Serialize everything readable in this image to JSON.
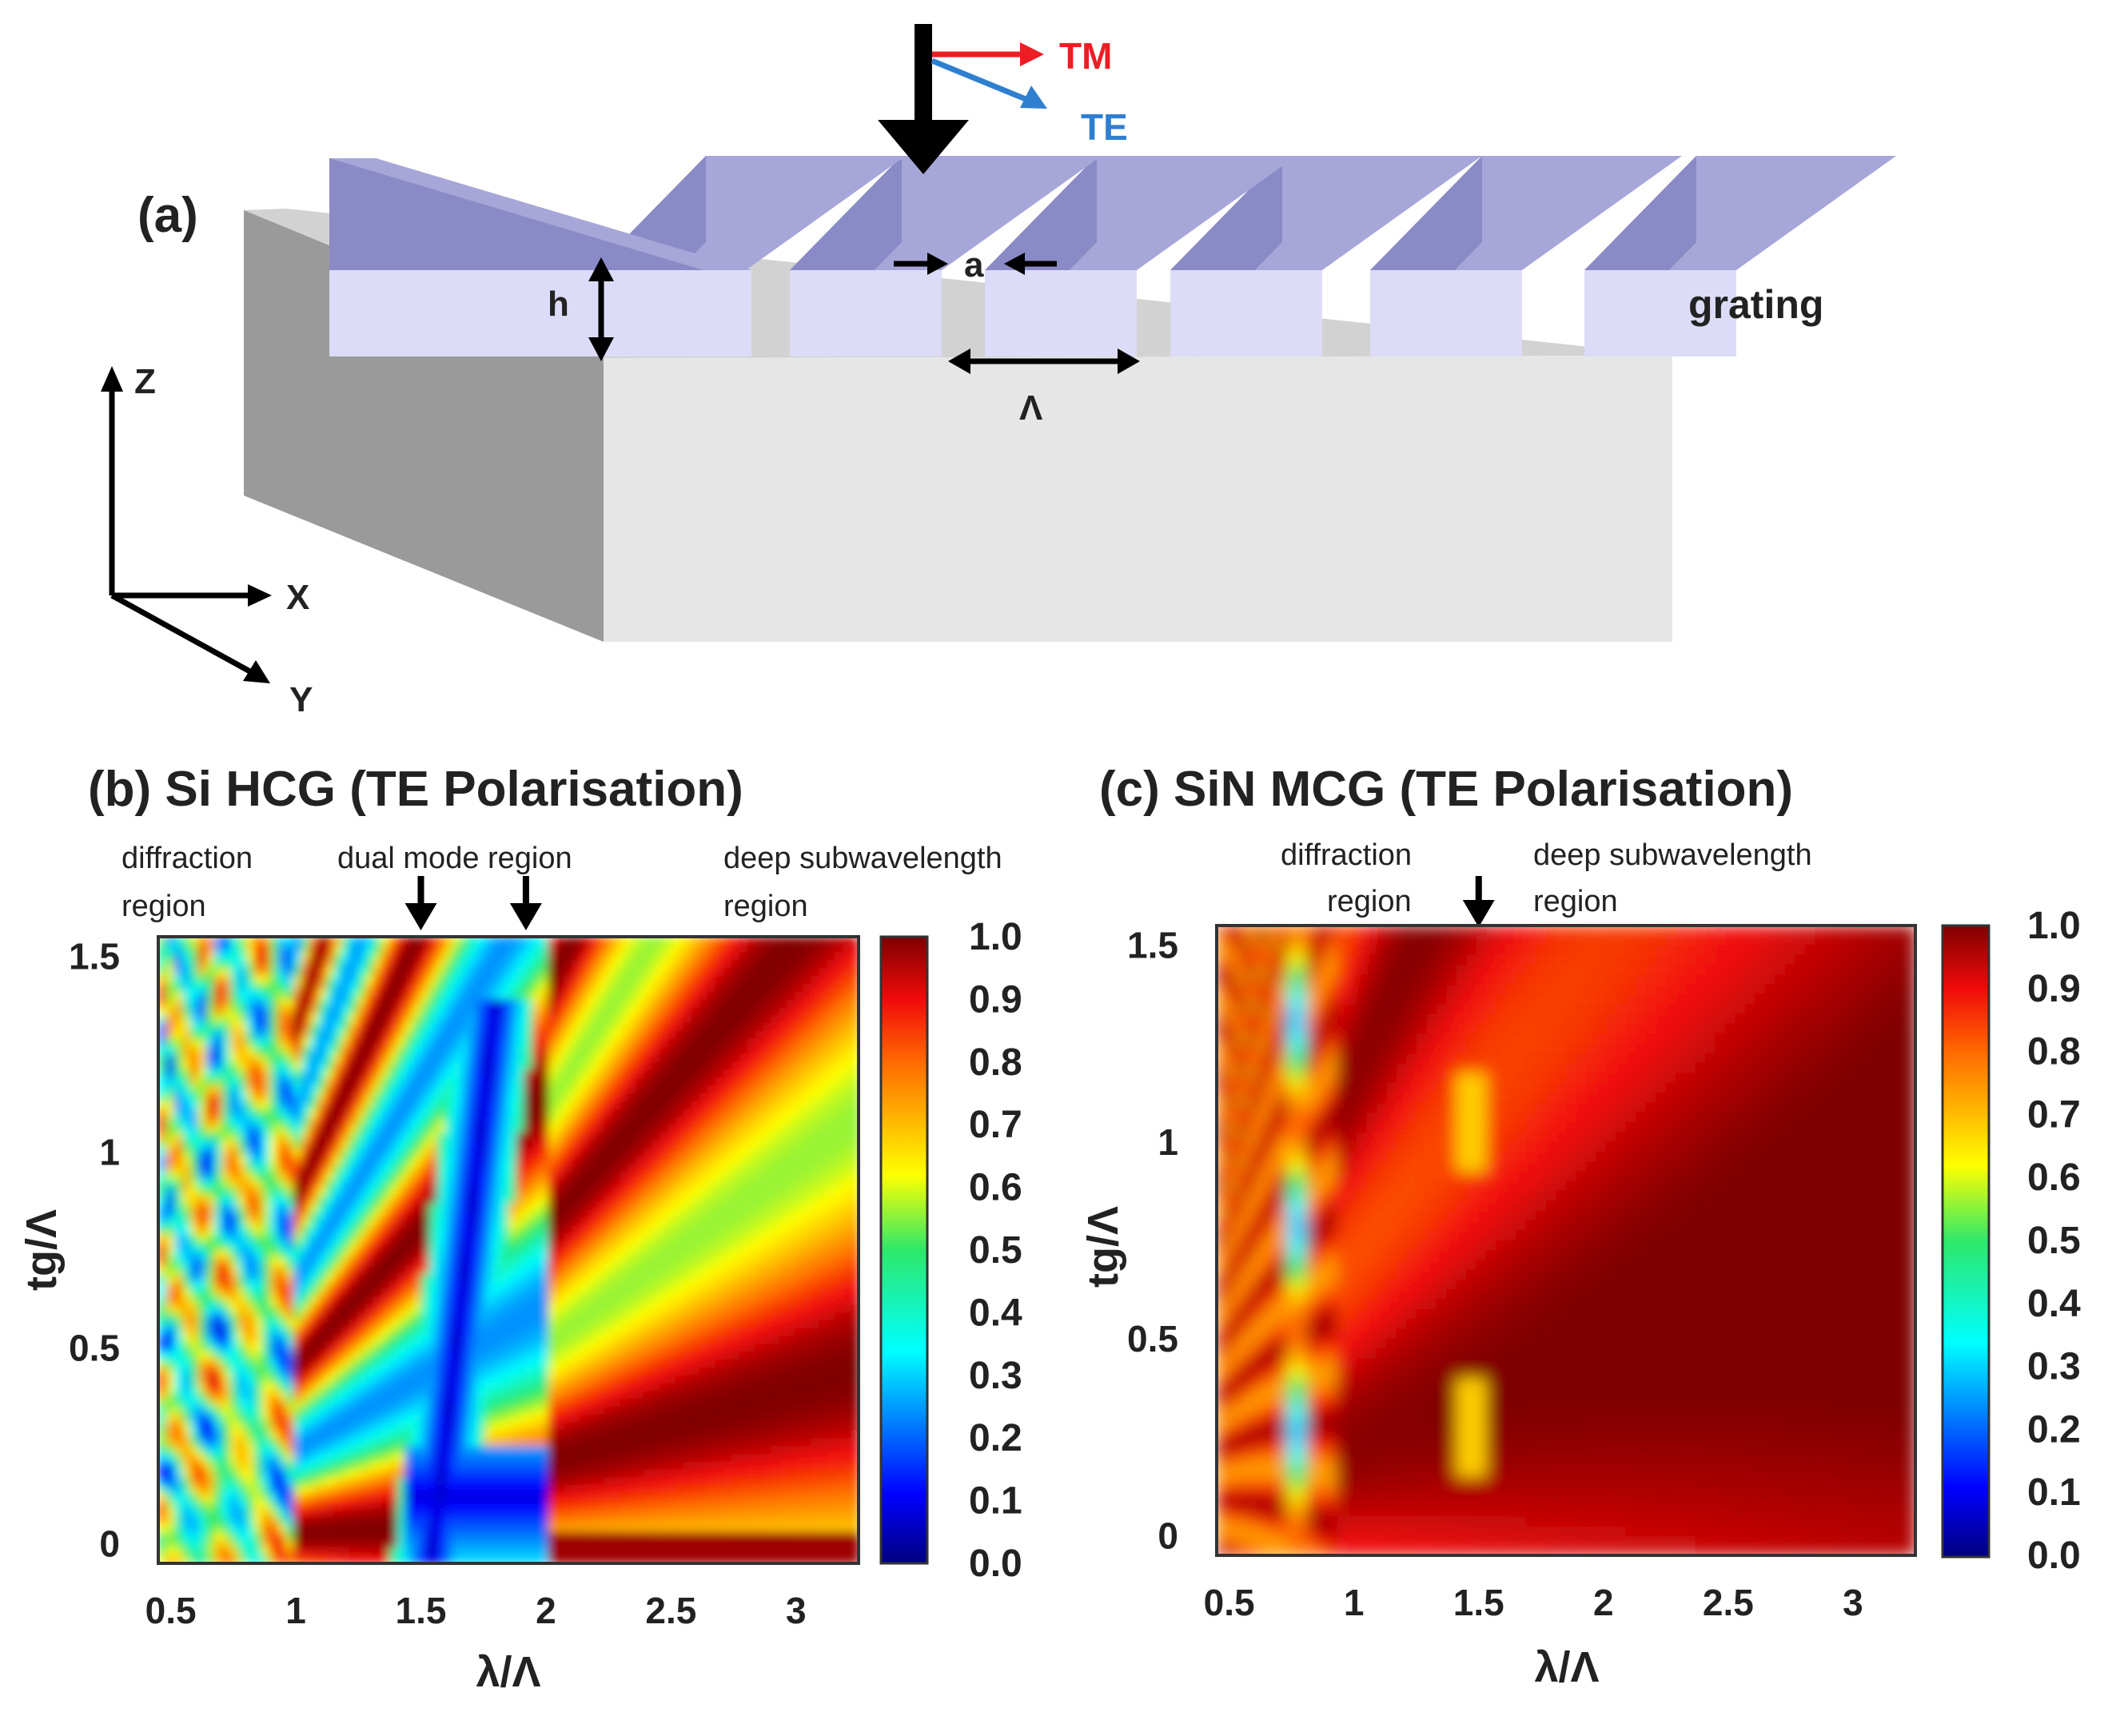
{
  "panel_a": {
    "label": "(a)",
    "grating_label": "grating",
    "dims": {
      "h": "h",
      "a": "a",
      "period": "Λ"
    },
    "polarisations": {
      "tm": "TM",
      "te": "TE",
      "tm_color": "#ee1c24",
      "te_color": "#2f7fd1"
    },
    "axes": {
      "z": "Z",
      "x": "X",
      "y": "Y"
    },
    "colors": {
      "grating_top": "#a6a6d8",
      "grating_front": "#dcdcf8",
      "grating_side": "#8a8ac6",
      "substrate_top": "#d4d4d4",
      "substrate_front": "#e6e6e6",
      "substrate_side": "#9a9a9a"
    }
  },
  "panel_b": {
    "title": "(b) Si HCG (TE Polarisation)",
    "annotations": {
      "diffraction_1": "diffraction",
      "diffraction_2": "region",
      "dual_mode": "dual mode region",
      "deep_1": "deep subwavelength",
      "deep_2": "region"
    },
    "dual_mode_arrows_at_x": [
      1.5,
      1.92
    ]
  },
  "panel_c": {
    "title": "(c) SiN MCG (TE Polarisation)",
    "annotations": {
      "diffraction_1": "diffraction",
      "diffraction_2": "region",
      "deep_1": "deep subwavelength",
      "deep_2": "region"
    },
    "boundary_arrow_at_x": 1.5
  },
  "chart_data": [
    {
      "type": "heatmap",
      "title": "(b) Si HCG (TE Polarisation)",
      "xlabel": "λ/Λ",
      "ylabel": "tg/Λ",
      "xlim": [
        0.45,
        3.25
      ],
      "ylim": [
        -0.05,
        1.55
      ],
      "xticks": [
        0.5,
        1,
        1.5,
        2,
        2.5,
        3
      ],
      "xtick_labels": [
        "0.5",
        "1",
        "1.5",
        "2",
        "2.5",
        "3"
      ],
      "yticks": [
        0,
        0.5,
        1,
        1.5
      ],
      "ytick_labels": [
        "0",
        "0.5",
        "1",
        "1.5"
      ],
      "colorbar": {
        "min": 0.0,
        "max": 1.0,
        "ticks": [
          "0.0",
          "0.1",
          "0.2",
          "0.3",
          "0.4",
          "0.5",
          "0.6",
          "0.7",
          "0.8",
          "0.9",
          "1.0"
        ],
        "colormap": "jet"
      },
      "description_values": {
        "max_reflectivity": 1.0,
        "min_reflectivity": 0.0
      }
    },
    {
      "type": "heatmap",
      "title": "(c) SiN MCG (TE Polarisation)",
      "xlabel": "λ/Λ",
      "ylabel": "tg/Λ",
      "xlim": [
        0.45,
        3.25
      ],
      "ylim": [
        -0.05,
        1.55
      ],
      "xticks": [
        0.5,
        1,
        1.5,
        2,
        2.5,
        3
      ],
      "xtick_labels": [
        "0.5",
        "1",
        "1.5",
        "2",
        "2.5",
        "3"
      ],
      "yticks": [
        0,
        0.5,
        1,
        1.5
      ],
      "ytick_labels": [
        "0",
        "0.5",
        "1",
        "1.5"
      ],
      "colorbar": {
        "min": 0.0,
        "max": 1.0,
        "ticks": [
          "0.0",
          "0.1",
          "0.2",
          "0.3",
          "0.4",
          "0.5",
          "0.6",
          "0.7",
          "0.8",
          "0.9",
          "1.0"
        ],
        "colormap": "jet"
      },
      "description_values": {
        "max_reflectivity": 1.0,
        "min_reflectivity": 0.35
      }
    }
  ]
}
